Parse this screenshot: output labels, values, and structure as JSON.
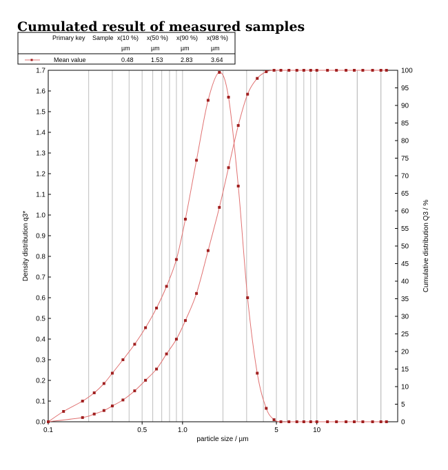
{
  "title": "Cumulated result of measured samples",
  "legend_table": {
    "headers": [
      "Primary key",
      "Sample",
      "x(10 %)",
      "x(50 %)",
      "x(90 %)",
      "x(98 %)"
    ],
    "units": [
      "µm",
      "µm",
      "µm",
      "µm"
    ],
    "row": {
      "label": "Mean value",
      "values": [
        "0.48",
        "1.53",
        "2.83",
        "3.64"
      ]
    }
  },
  "chart_data": {
    "type": "line",
    "title": "Cumulated result of measured samples",
    "xlabel": "particle size / µm",
    "ylabel": "Density distribution q3*",
    "y2label": "Cumulative distribution Q3 / %",
    "x_scale": "log",
    "xlim": [
      0.1,
      40
    ],
    "ylim": [
      0,
      1.7
    ],
    "y2lim": [
      0,
      100
    ],
    "grid": "vertical",
    "x_tick_labels": [
      "0.1",
      "0.5",
      "1.0",
      "5",
      "10"
    ],
    "x_tick_values": [
      0.1,
      0.5,
      1.0,
      5,
      10
    ],
    "y_tick_labels": [
      "0.0",
      "0.1",
      "0.2",
      "0.3",
      "0.4",
      "0.5",
      "0.6",
      "0.7",
      "0.8",
      "0.9",
      "1.0",
      "1.1",
      "1.2",
      "1.3",
      "1.4",
      "1.5",
      "1.6",
      "1.7"
    ],
    "y2_tick_labels": [
      "0",
      "5",
      "10",
      "15",
      "20",
      "25",
      "30",
      "35",
      "40",
      "45",
      "50",
      "55",
      "60",
      "65",
      "70",
      "75",
      "80",
      "85",
      "90",
      "95",
      "100"
    ],
    "line_color": "#e07070",
    "marker_color": "#a02020",
    "series": [
      {
        "name": "Mean value",
        "axis": "left",
        "x": [
          0.1,
          0.13,
          0.18,
          0.22,
          0.26,
          0.3,
          0.36,
          0.44,
          0.53,
          0.64,
          0.76,
          0.9,
          1.05,
          1.27,
          1.55,
          1.88,
          2.2,
          2.6,
          3.05,
          3.6,
          4.2,
          4.8,
          5.4,
          6.2,
          7.1,
          8.0,
          9.0,
          10.0,
          12.0,
          14.0,
          16.5,
          19.0,
          22.0,
          26.0,
          30.0,
          33.0
        ],
        "y": [
          0.0,
          0.05,
          0.1,
          0.14,
          0.185,
          0.235,
          0.3,
          0.375,
          0.455,
          0.55,
          0.655,
          0.785,
          0.98,
          1.265,
          1.555,
          1.69,
          1.57,
          1.14,
          0.6,
          0.235,
          0.065,
          0.01,
          0.0,
          0.0,
          0.0,
          0.0,
          0.0,
          0.0,
          0.0,
          0.0,
          0.0,
          0.0,
          0.0,
          0.0,
          0.0,
          0.0
        ]
      },
      {
        "name": "Mean value",
        "axis": "right",
        "x": [
          0.1,
          0.18,
          0.22,
          0.26,
          0.3,
          0.36,
          0.44,
          0.53,
          0.64,
          0.76,
          0.9,
          1.05,
          1.27,
          1.55,
          1.88,
          2.2,
          2.6,
          3.05,
          3.6,
          4.2,
          4.8,
          5.4,
          6.2,
          7.1,
          8.0,
          9.0,
          10.0,
          12.0,
          14.0,
          16.5,
          19.0,
          22.0,
          26.0,
          30.0,
          33.0
        ],
        "y": [
          0.0,
          1.2,
          2.2,
          3.2,
          4.5,
          6.2,
          8.8,
          11.8,
          15.0,
          19.3,
          23.5,
          28.8,
          36.5,
          48.7,
          61.0,
          72.3,
          84.3,
          93.2,
          97.7,
          99.6,
          100,
          100,
          100,
          100,
          100,
          100,
          100,
          100,
          100,
          100,
          100,
          100,
          100,
          100,
          100
        ]
      }
    ]
  }
}
